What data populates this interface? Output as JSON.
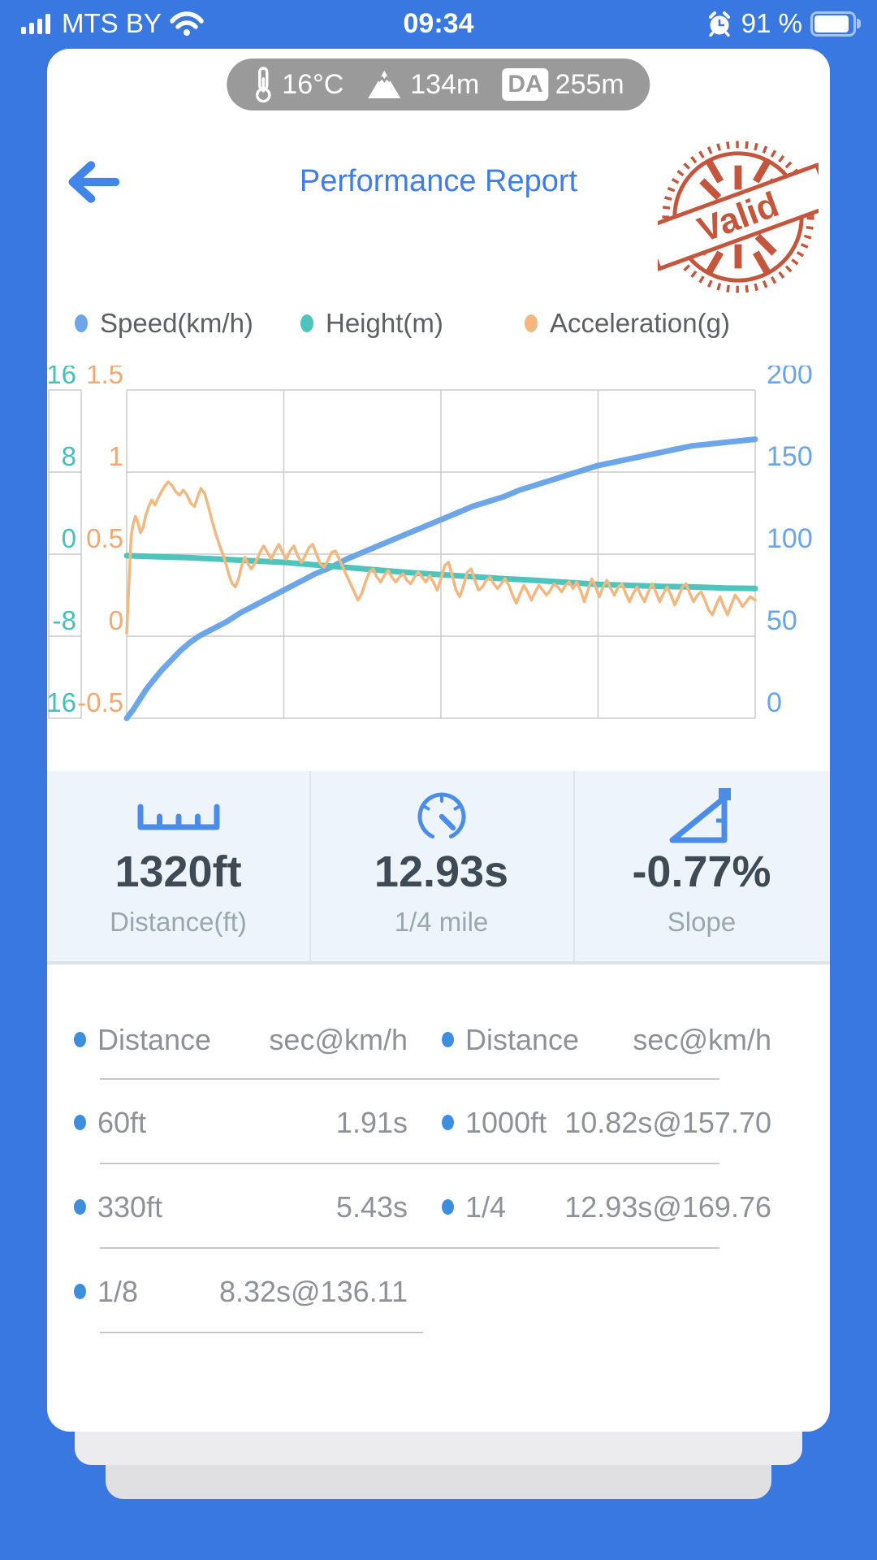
{
  "status_bar": {
    "carrier": "MTS BY",
    "time": "09:34",
    "battery_percent": "91 %",
    "battery_level": 0.91,
    "icons": [
      "signal-strength-icon",
      "wifi-icon",
      "alarm-icon",
      "battery-icon"
    ]
  },
  "env": {
    "temperature": "16°C",
    "altitude": "134m",
    "da_label": "DA",
    "da_value": "255m",
    "icons": [
      "thermometer-icon",
      "mountain-icon"
    ]
  },
  "header": {
    "title": "Performance Report",
    "stamp_text": "Valid",
    "back_icon": "back-arrow-icon"
  },
  "legend": {
    "items": [
      {
        "label": "Speed(km/h)",
        "color": "#6CA6E8"
      },
      {
        "label": "Height(m)",
        "color": "#4EC4BD"
      },
      {
        "label": "Acceleration(g)",
        "color": "#F3B87F"
      }
    ]
  },
  "chart_data": {
    "type": "line",
    "x_note": "no x tick labels shown; series points are [fraction_of_plot_width, value]",
    "grid": {
      "rows": 4,
      "cols": 4,
      "color": "#CCCCCC"
    },
    "axes": {
      "height": {
        "label": "Height(m)",
        "ticks": [
          16,
          8,
          0,
          -8,
          -16
        ],
        "range": [
          -16,
          16
        ],
        "color": "#45C0BA",
        "position": "left-outer"
      },
      "accel": {
        "label": "Acceleration(g)",
        "ticks": [
          1.5,
          1,
          0.5,
          0,
          -0.5
        ],
        "range": [
          -0.5,
          1.5
        ],
        "color": "#F2A873",
        "position": "left-inner"
      },
      "speed": {
        "label": "Speed(km/h)",
        "ticks": [
          200,
          150,
          100,
          50,
          0
        ],
        "range": [
          0,
          200
        ],
        "color": "#68A5EA",
        "position": "right"
      }
    },
    "series": [
      {
        "name": "Speed(km/h)",
        "axis": "speed",
        "color": "#6CA6E8",
        "stroke_width": 7,
        "points": [
          [
            0,
            0
          ],
          [
            0.01,
            5
          ],
          [
            0.02,
            11
          ],
          [
            0.03,
            17
          ],
          [
            0.04,
            22
          ],
          [
            0.055,
            29
          ],
          [
            0.07,
            35
          ],
          [
            0.085,
            41
          ],
          [
            0.1,
            46
          ],
          [
            0.115,
            50
          ],
          [
            0.13,
            53
          ],
          [
            0.145,
            56
          ],
          [
            0.16,
            59
          ],
          [
            0.18,
            64
          ],
          [
            0.2,
            68
          ],
          [
            0.225,
            73
          ],
          [
            0.25,
            78
          ],
          [
            0.275,
            83
          ],
          [
            0.3,
            88
          ],
          [
            0.325,
            92
          ],
          [
            0.35,
            97
          ],
          [
            0.375,
            101
          ],
          [
            0.4,
            105
          ],
          [
            0.425,
            109
          ],
          [
            0.45,
            113
          ],
          [
            0.475,
            117
          ],
          [
            0.5,
            121
          ],
          [
            0.525,
            125
          ],
          [
            0.55,
            129
          ],
          [
            0.575,
            132
          ],
          [
            0.6,
            135
          ],
          [
            0.625,
            139
          ],
          [
            0.65,
            142
          ],
          [
            0.675,
            145
          ],
          [
            0.7,
            148
          ],
          [
            0.725,
            151
          ],
          [
            0.75,
            154
          ],
          [
            0.775,
            156
          ],
          [
            0.8,
            158
          ],
          [
            0.825,
            160
          ],
          [
            0.85,
            162
          ],
          [
            0.875,
            164
          ],
          [
            0.9,
            166
          ],
          [
            0.925,
            167
          ],
          [
            0.95,
            168
          ],
          [
            0.975,
            169
          ],
          [
            1,
            170
          ]
        ]
      },
      {
        "name": "Height(m)",
        "axis": "height",
        "color": "#4EC4BD",
        "stroke_width": 7,
        "points": [
          [
            0,
            -0.15
          ],
          [
            0.05,
            -0.25
          ],
          [
            0.1,
            -0.35
          ],
          [
            0.15,
            -0.5
          ],
          [
            0.2,
            -0.65
          ],
          [
            0.25,
            -0.8
          ],
          [
            0.3,
            -1.05
          ],
          [
            0.35,
            -1.3
          ],
          [
            0.4,
            -1.55
          ],
          [
            0.45,
            -1.8
          ],
          [
            0.5,
            -2.0
          ],
          [
            0.55,
            -2.2
          ],
          [
            0.6,
            -2.4
          ],
          [
            0.65,
            -2.55
          ],
          [
            0.7,
            -2.75
          ],
          [
            0.75,
            -2.95
          ],
          [
            0.8,
            -3.05
          ],
          [
            0.85,
            -3.15
          ],
          [
            0.9,
            -3.2
          ],
          [
            0.95,
            -3.3
          ],
          [
            1,
            -3.35
          ]
        ]
      },
      {
        "name": "Acceleration(g)",
        "axis": "accel",
        "color": "#F3B87F",
        "stroke_width": 3.5,
        "points": [
          [
            0,
            0.02
          ],
          [
            0.004,
            0.35
          ],
          [
            0.007,
            0.6
          ],
          [
            0.01,
            0.68
          ],
          [
            0.014,
            0.73
          ],
          [
            0.018,
            0.69
          ],
          [
            0.022,
            0.63
          ],
          [
            0.026,
            0.66
          ],
          [
            0.03,
            0.73
          ],
          [
            0.035,
            0.79
          ],
          [
            0.04,
            0.83
          ],
          [
            0.045,
            0.8
          ],
          [
            0.05,
            0.84
          ],
          [
            0.055,
            0.88
          ],
          [
            0.06,
            0.91
          ],
          [
            0.066,
            0.94
          ],
          [
            0.072,
            0.92
          ],
          [
            0.078,
            0.88
          ],
          [
            0.084,
            0.86
          ],
          [
            0.09,
            0.89
          ],
          [
            0.096,
            0.86
          ],
          [
            0.102,
            0.81
          ],
          [
            0.108,
            0.79
          ],
          [
            0.113,
            0.85
          ],
          [
            0.118,
            0.9
          ],
          [
            0.124,
            0.87
          ],
          [
            0.13,
            0.79
          ],
          [
            0.136,
            0.7
          ],
          [
            0.142,
            0.62
          ],
          [
            0.148,
            0.55
          ],
          [
            0.153,
            0.5
          ],
          [
            0.158,
            0.44
          ],
          [
            0.163,
            0.37
          ],
          [
            0.168,
            0.32
          ],
          [
            0.173,
            0.3
          ],
          [
            0.178,
            0.35
          ],
          [
            0.183,
            0.43
          ],
          [
            0.188,
            0.48
          ],
          [
            0.193,
            0.44
          ],
          [
            0.198,
            0.41
          ],
          [
            0.205,
            0.45
          ],
          [
            0.212,
            0.51
          ],
          [
            0.218,
            0.55
          ],
          [
            0.224,
            0.51
          ],
          [
            0.23,
            0.47
          ],
          [
            0.236,
            0.52
          ],
          [
            0.242,
            0.56
          ],
          [
            0.248,
            0.51
          ],
          [
            0.254,
            0.47
          ],
          [
            0.26,
            0.52
          ],
          [
            0.266,
            0.55
          ],
          [
            0.272,
            0.49
          ],
          [
            0.278,
            0.45
          ],
          [
            0.284,
            0.49
          ],
          [
            0.29,
            0.54
          ],
          [
            0.296,
            0.56
          ],
          [
            0.302,
            0.5
          ],
          [
            0.308,
            0.44
          ],
          [
            0.314,
            0.42
          ],
          [
            0.32,
            0.46
          ],
          [
            0.326,
            0.51
          ],
          [
            0.332,
            0.52
          ],
          [
            0.338,
            0.47
          ],
          [
            0.344,
            0.42
          ],
          [
            0.35,
            0.37
          ],
          [
            0.356,
            0.32
          ],
          [
            0.362,
            0.27
          ],
          [
            0.368,
            0.22
          ],
          [
            0.374,
            0.26
          ],
          [
            0.38,
            0.33
          ],
          [
            0.386,
            0.39
          ],
          [
            0.392,
            0.41
          ],
          [
            0.398,
            0.36
          ],
          [
            0.404,
            0.33
          ],
          [
            0.41,
            0.37
          ],
          [
            0.416,
            0.4
          ],
          [
            0.422,
            0.36
          ],
          [
            0.428,
            0.33
          ],
          [
            0.434,
            0.36
          ],
          [
            0.44,
            0.38
          ],
          [
            0.446,
            0.34
          ],
          [
            0.452,
            0.32
          ],
          [
            0.458,
            0.36
          ],
          [
            0.464,
            0.39
          ],
          [
            0.47,
            0.36
          ],
          [
            0.476,
            0.33
          ],
          [
            0.482,
            0.37
          ],
          [
            0.488,
            0.33
          ],
          [
            0.494,
            0.28
          ],
          [
            0.5,
            0.35
          ],
          [
            0.506,
            0.43
          ],
          [
            0.512,
            0.45
          ],
          [
            0.518,
            0.37
          ],
          [
            0.524,
            0.28
          ],
          [
            0.53,
            0.24
          ],
          [
            0.536,
            0.31
          ],
          [
            0.542,
            0.39
          ],
          [
            0.548,
            0.41
          ],
          [
            0.554,
            0.34
          ],
          [
            0.56,
            0.28
          ],
          [
            0.566,
            0.3
          ],
          [
            0.572,
            0.34
          ],
          [
            0.578,
            0.36
          ],
          [
            0.584,
            0.32
          ],
          [
            0.59,
            0.29
          ],
          [
            0.596,
            0.32
          ],
          [
            0.602,
            0.35
          ],
          [
            0.608,
            0.31
          ],
          [
            0.614,
            0.25
          ],
          [
            0.62,
            0.2
          ],
          [
            0.626,
            0.26
          ],
          [
            0.632,
            0.31
          ],
          [
            0.638,
            0.27
          ],
          [
            0.644,
            0.22
          ],
          [
            0.65,
            0.27
          ],
          [
            0.656,
            0.31
          ],
          [
            0.662,
            0.28
          ],
          [
            0.668,
            0.25
          ],
          [
            0.674,
            0.28
          ],
          [
            0.68,
            0.32
          ],
          [
            0.686,
            0.3
          ],
          [
            0.692,
            0.27
          ],
          [
            0.698,
            0.31
          ],
          [
            0.704,
            0.33
          ],
          [
            0.71,
            0.29
          ],
          [
            0.716,
            0.33
          ],
          [
            0.722,
            0.28
          ],
          [
            0.728,
            0.21
          ],
          [
            0.734,
            0.28
          ],
          [
            0.74,
            0.35
          ],
          [
            0.746,
            0.3
          ],
          [
            0.752,
            0.24
          ],
          [
            0.758,
            0.3
          ],
          [
            0.764,
            0.34
          ],
          [
            0.77,
            0.29
          ],
          [
            0.776,
            0.25
          ],
          [
            0.782,
            0.3
          ],
          [
            0.788,
            0.32
          ],
          [
            0.794,
            0.26
          ],
          [
            0.8,
            0.21
          ],
          [
            0.806,
            0.26
          ],
          [
            0.812,
            0.3
          ],
          [
            0.818,
            0.25
          ],
          [
            0.824,
            0.21
          ],
          [
            0.83,
            0.27
          ],
          [
            0.836,
            0.32
          ],
          [
            0.842,
            0.27
          ],
          [
            0.848,
            0.21
          ],
          [
            0.854,
            0.26
          ],
          [
            0.86,
            0.3
          ],
          [
            0.866,
            0.25
          ],
          [
            0.872,
            0.19
          ],
          [
            0.878,
            0.24
          ],
          [
            0.884,
            0.3
          ],
          [
            0.89,
            0.32
          ],
          [
            0.896,
            0.26
          ],
          [
            0.902,
            0.21
          ],
          [
            0.908,
            0.25
          ],
          [
            0.914,
            0.27
          ],
          [
            0.92,
            0.22
          ],
          [
            0.926,
            0.16
          ],
          [
            0.932,
            0.13
          ],
          [
            0.938,
            0.19
          ],
          [
            0.944,
            0.24
          ],
          [
            0.95,
            0.18
          ],
          [
            0.956,
            0.13
          ],
          [
            0.962,
            0.19
          ],
          [
            0.968,
            0.25
          ],
          [
            0.974,
            0.22
          ],
          [
            0.98,
            0.18
          ],
          [
            0.986,
            0.21
          ],
          [
            0.992,
            0.24
          ],
          [
            1,
            0.22
          ]
        ]
      }
    ]
  },
  "stats": {
    "items": [
      {
        "icon": "ruler-icon",
        "value": "1320ft",
        "label": "Distance(ft)"
      },
      {
        "icon": "gauge-icon",
        "value": "12.93s",
        "label": "1/4 mile"
      },
      {
        "icon": "slope-icon",
        "value": "-0.77%",
        "label": "Slope"
      }
    ]
  },
  "results": {
    "columns": [
      {
        "label": "Distance",
        "unit": "sec@km/h"
      },
      {
        "label": "Distance",
        "unit": "sec@km/h"
      }
    ],
    "rows": [
      [
        {
          "label": "60ft",
          "value": "1.91s"
        },
        {
          "label": "1000ft",
          "value": "10.82s@157.70"
        }
      ],
      [
        {
          "label": "330ft",
          "value": "5.43s"
        },
        {
          "label": "1/4",
          "value": "12.93s@169.76"
        }
      ],
      [
        {
          "label": "1/8",
          "value": "8.32s@136.11"
        },
        null
      ]
    ]
  },
  "colors": {
    "background": "#3978E0",
    "accent_blue": "#3F7EE8",
    "stamp_red": "#C14A30",
    "stats_bg": "#EDF4FB",
    "value_dark": "#3E4A56",
    "muted_gray": "#9AA6B0",
    "table_gray": "#8E9298",
    "dot_blue": "#3E8EE0",
    "grid": "#CCCCCC",
    "pill_gray": "#9A9A9A"
  }
}
